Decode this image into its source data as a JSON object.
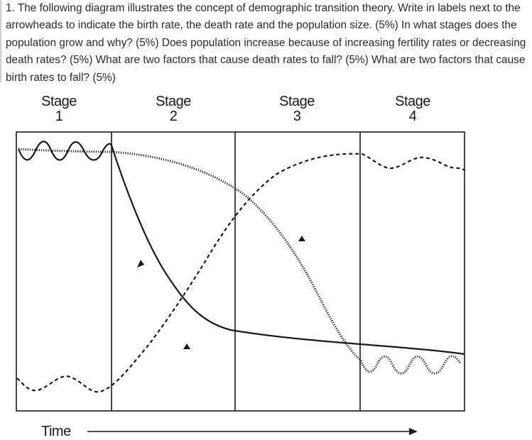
{
  "question": {
    "text": "1. The following diagram illustrates the concept of demographic transition theory. Write in labels next to the arrowheads to indicate the birth rate, the death rate and the population size. (5%) In what stages does the population grow and why? (5%) Does population increase because of increasing fertility rates or decreasing death rates? (5%) What are two factors that cause death rates to fall? (5%) What are two factors that cause birth rates to fall? (5%)"
  },
  "diagram": {
    "stages": [
      {
        "word": "Stage",
        "number": "1"
      },
      {
        "word": "Stage",
        "number": "2"
      },
      {
        "word": "Stage",
        "number": "3"
      },
      {
        "word": "Stage",
        "number": "4"
      }
    ],
    "x_axis_label": "Time"
  }
}
